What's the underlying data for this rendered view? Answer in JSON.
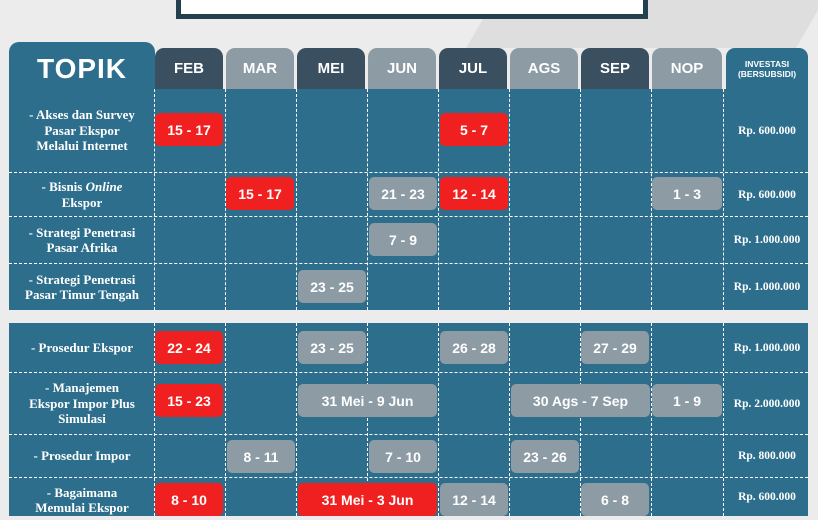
{
  "colors": {
    "primary": "#2d6e8d",
    "header_dark": "#3a4f5f",
    "header_light": "#8d9ba5",
    "accent_red": "#f02020",
    "pill_gray": "#8d9ba5"
  },
  "header": {
    "topic": "TOPIK",
    "months": [
      "FEB",
      "MAR",
      "MEI",
      "JUN",
      "JUL",
      "AGS",
      "SEP",
      "NOP"
    ],
    "investment_line1": "INVESTASI",
    "investment_line2": "(BERSUBSIDI)"
  },
  "rows": [
    {
      "topic": [
        "- Akses dan Survey",
        "Pasar Ekspor",
        "Melalui Internet"
      ],
      "investment": "Rp. 600.000",
      "dates": [
        {
          "label": "15 - 17",
          "color": "red"
        },
        {
          "label": "5 - 7",
          "color": "red"
        }
      ]
    },
    {
      "topic": [
        "- Bisnis ",
        "Online",
        "Ekspor"
      ],
      "investment": "Rp. 600.000",
      "dates": [
        {
          "label": "15 - 17",
          "color": "red"
        },
        {
          "label": "21 - 23",
          "color": "gray"
        },
        {
          "label": "12 - 14",
          "color": "red"
        },
        {
          "label": "1 - 3",
          "color": "gray"
        }
      ]
    },
    {
      "topic": [
        "- Strategi Penetrasi",
        "Pasar Afrika"
      ],
      "investment": "Rp. 1.000.000",
      "dates": [
        {
          "label": "7 - 9",
          "color": "gray"
        }
      ]
    },
    {
      "topic": [
        "- Strategi Penetrasi",
        "Pasar Timur Tengah"
      ],
      "investment": "Rp. 1.000.000",
      "dates": [
        {
          "label": "23 - 25",
          "color": "gray"
        }
      ]
    },
    {
      "topic": [
        "- Prosedur Ekspor"
      ],
      "investment": "Rp. 1.000.000",
      "dates": [
        {
          "label": "22 - 24",
          "color": "red"
        },
        {
          "label": "23 - 25",
          "color": "gray"
        },
        {
          "label": "26 - 28",
          "color": "gray"
        },
        {
          "label": "27 - 29",
          "color": "gray"
        }
      ]
    },
    {
      "topic": [
        "- Manajemen",
        "Ekspor Impor Plus",
        "Simulasi"
      ],
      "investment": "Rp. 2.000.000",
      "dates": [
        {
          "label": "15 - 23",
          "color": "red"
        },
        {
          "label": "31 Mei - 9 Jun",
          "color": "gray"
        },
        {
          "label": "30 Ags - 7 Sep",
          "color": "gray"
        },
        {
          "label": "1 - 9",
          "color": "gray"
        }
      ]
    },
    {
      "topic": [
        "- Prosedur Impor"
      ],
      "investment": "Rp. 800.000",
      "dates": [
        {
          "label": "8 - 11",
          "color": "gray"
        },
        {
          "label": "7 - 10",
          "color": "gray"
        },
        {
          "label": "23 - 26",
          "color": "gray"
        }
      ]
    },
    {
      "topic": [
        "- Bagaimana",
        "Memulai Ekspor"
      ],
      "investment": "Rp. 600.000",
      "dates": [
        {
          "label": "8 - 10",
          "color": "red"
        },
        {
          "label": "31 Mei - 3 Jun",
          "color": "red"
        },
        {
          "label": "12 - 14",
          "color": "gray"
        },
        {
          "label": "6 - 8",
          "color": "gray"
        }
      ]
    }
  ]
}
